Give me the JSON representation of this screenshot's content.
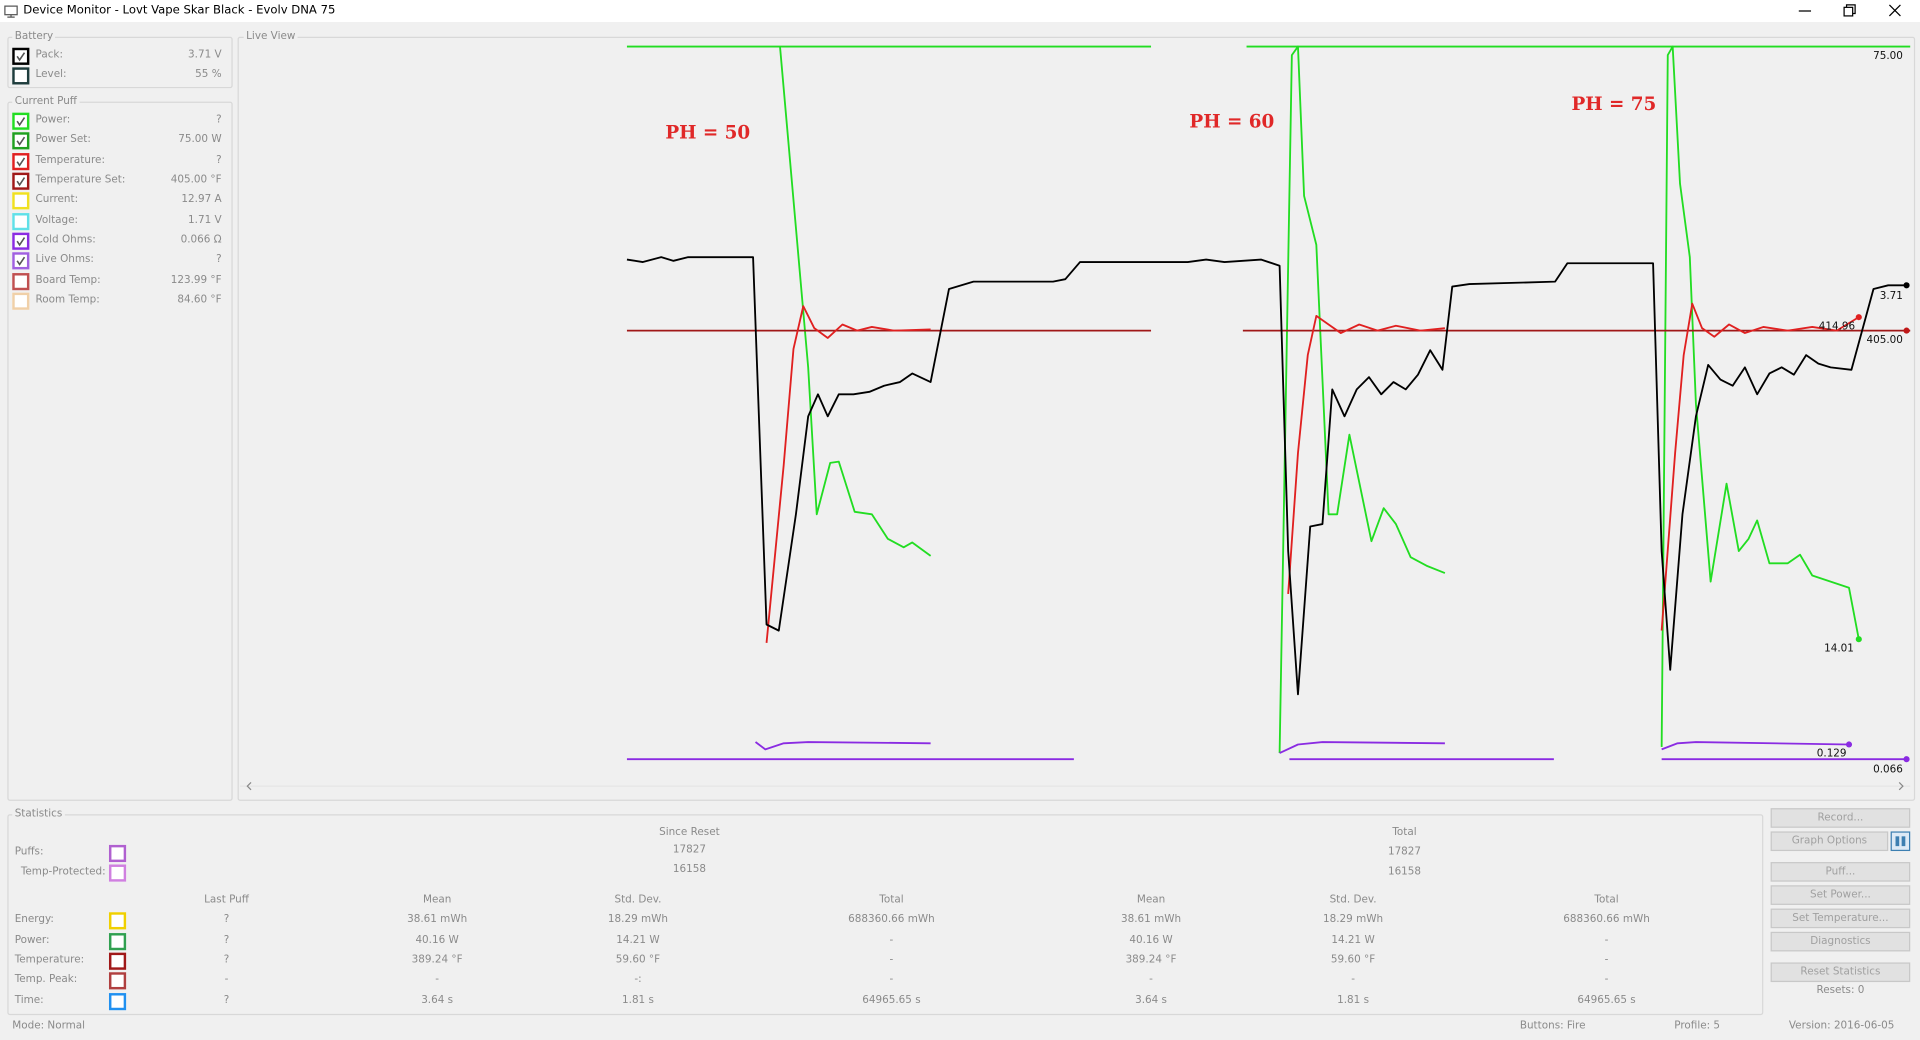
{
  "window": {
    "title": "Device Monitor - Lovt Vape Skar Black - Evolv DNA 75"
  },
  "battery": {
    "title": "Battery",
    "rows": [
      {
        "label": "Pack:",
        "value": "3.71 V",
        "color": "#000000",
        "checked": true
      },
      {
        "label": "Level:",
        "value": "55 %",
        "color": "#1e3c3c",
        "checked": false
      }
    ]
  },
  "current_puff": {
    "title": "Current Puff",
    "rows": [
      {
        "label": "Power:",
        "value": "?",
        "color": "#22dd22",
        "checked": true
      },
      {
        "label": "Power Set:",
        "value": "75.00 W",
        "color": "#20a020",
        "checked": true
      },
      {
        "label": "Temperature:",
        "value": "?",
        "color": "#e02020",
        "checked": true
      },
      {
        "label": "Temperature Set:",
        "value": "405.00 °F",
        "color": "#a01818",
        "checked": true
      },
      {
        "label": "Current:",
        "value": "12.97 A",
        "color": "#f0e020",
        "checked": false
      },
      {
        "label": "Voltage:",
        "value": "1.71 V",
        "color": "#60e0e8",
        "checked": false
      },
      {
        "label": "Cold Ohms:",
        "value": "0.066 Ω",
        "color": "#8a2be2",
        "checked": true
      },
      {
        "label": "Live Ohms:",
        "value": "?",
        "color": "#a060e0",
        "checked": true
      },
      {
        "label": "Board Temp:",
        "value": "123.99 °F",
        "color": "#c05050",
        "checked": false
      },
      {
        "label": "Room Temp:",
        "value": "84.60 °F",
        "color": "#f0d0a8",
        "checked": false
      }
    ]
  },
  "live_view": {
    "title": "Live View",
    "annotations": [
      "PH = 50",
      "PH = 60",
      "PH = 75"
    ],
    "end_labels": [
      "75.00",
      "3.71",
      "414.96",
      "405.00",
      "14.01",
      "0.129",
      "0.066"
    ]
  },
  "statistics": {
    "title": "Statistics",
    "since_reset": "Since Reset",
    "total": "Total",
    "counts": [
      {
        "label": "Puffs:",
        "color": "#b060d0",
        "values": [
          "17827",
          "17827"
        ]
      },
      {
        "label": "Temp-Protected:",
        "color": "#d080e0",
        "values": [
          "16158",
          "16158"
        ]
      }
    ],
    "columns": [
      "Last Puff",
      "Mean",
      "Std. Dev.",
      "Total",
      "Mean",
      "Std. Dev.",
      "Total"
    ],
    "rows": [
      {
        "label": "Energy:",
        "color": "#f0d000",
        "values": [
          "?",
          "38.61 mWh",
          "18.29 mWh",
          "688360.66 mWh",
          "38.61 mWh",
          "18.29 mWh",
          "688360.66 mWh"
        ]
      },
      {
        "label": "Power:",
        "color": "#30a050",
        "values": [
          "?",
          "40.16 W",
          "14.21 W",
          "-",
          "40.16 W",
          "14.21 W",
          "-"
        ]
      },
      {
        "label": "Temperature:",
        "color": "#a01818",
        "values": [
          "?",
          "389.24 °F",
          "59.60 °F",
          "-",
          "389.24 °F",
          "59.60 °F",
          "-"
        ]
      },
      {
        "label": "Temp. Peak:",
        "color": "#b04040",
        "values": [
          "-",
          "-",
          "-:",
          "-",
          "-",
          "-",
          "-"
        ]
      },
      {
        "label": "Time:",
        "color": "#2090f0",
        "values": [
          "?",
          "3.64 s",
          "1.81 s",
          "64965.65 s",
          "3.64 s",
          "1.81 s",
          "64965.65 s"
        ]
      }
    ]
  },
  "buttons": [
    "Record...",
    "Graph Options",
    "Puff...",
    "Set Power...",
    "Set Temperature...",
    "Diagnostics",
    "Reset Statistics"
  ],
  "resets": "Resets: 0",
  "status": {
    "mode": "Mode: Normal",
    "buttons": "Buttons: Fire",
    "profile": "Profile: 5",
    "version": "Version: 2016-06-05"
  }
}
